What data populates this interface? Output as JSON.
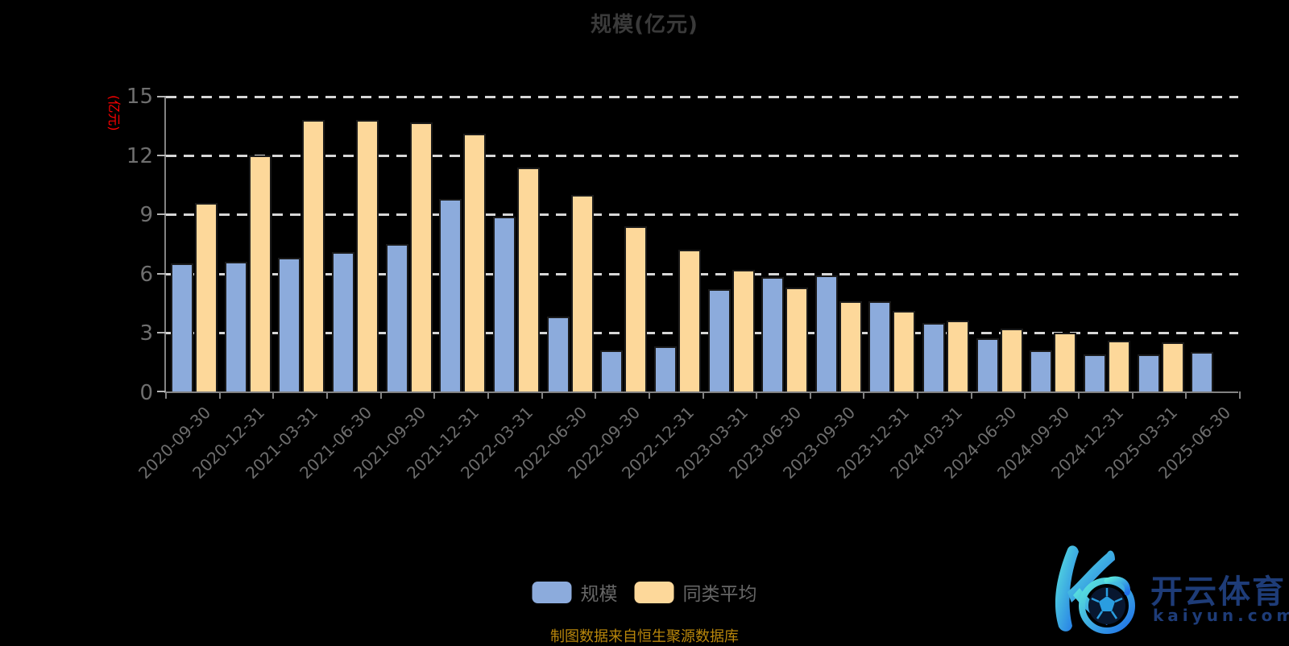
{
  "title": "规模(亿元)",
  "y_axis_name": "(亿元)",
  "footer_note": "制图数据来自恒生聚源数据库",
  "legend": {
    "items": [
      {
        "label": "规模",
        "color": "#8cabdc"
      },
      {
        "label": "同类平均",
        "color": "#fdd89a"
      }
    ]
  },
  "watermark": {
    "brand_cn": "开云体育",
    "brand_url": "kaiyun.com"
  },
  "colors": {
    "background": "#000000",
    "title_text": "#3a3a3a",
    "axis_line": "#828282",
    "axis_label": "#6f6f6f",
    "gridline": "#d6d6d6",
    "y_name_red": "#ff0000",
    "footer_gold": "#b8860b",
    "bar_blue": "#8cabdc",
    "bar_yellow": "#fdd89a"
  },
  "chart_data": {
    "type": "bar",
    "title": "规模(亿元)",
    "ylabel": "(亿元)",
    "xlabel": "",
    "ylim": [
      0,
      15
    ],
    "yticks": [
      0,
      3,
      6,
      9,
      12,
      15
    ],
    "grid": true,
    "legend_position": "bottom",
    "categories": [
      "2020-09-30",
      "2020-12-31",
      "2021-03-31",
      "2021-06-30",
      "2021-09-30",
      "2021-12-31",
      "2022-03-31",
      "2022-06-30",
      "2022-09-30",
      "2022-12-31",
      "2023-03-31",
      "2023-06-30",
      "2023-09-30",
      "2023-12-31",
      "2024-03-31",
      "2024-06-30",
      "2024-09-30",
      "2024-12-31",
      "2025-03-31",
      "2025-06-30"
    ],
    "series": [
      {
        "name": "规模",
        "color": "#8cabdc",
        "values": [
          6.5,
          6.6,
          6.8,
          7.1,
          7.5,
          9.8,
          8.9,
          3.8,
          2.1,
          2.3,
          5.2,
          5.8,
          5.9,
          4.6,
          3.5,
          2.7,
          2.1,
          1.9,
          1.9,
          2.0
        ]
      },
      {
        "name": "同类平均",
        "color": "#fdd89a",
        "values": [
          9.6,
          12.0,
          13.8,
          13.8,
          13.7,
          13.1,
          11.4,
          10.0,
          8.4,
          7.2,
          6.2,
          5.3,
          4.6,
          4.1,
          3.6,
          3.2,
          3.0,
          2.6,
          2.5,
          null
        ]
      }
    ]
  }
}
